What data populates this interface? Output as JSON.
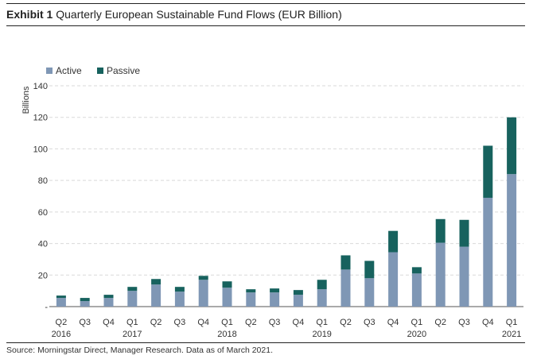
{
  "header": {
    "exhibit_label": "Exhibit 1",
    "title": "Quarterly European Sustainable Fund Flows (EUR Billion)"
  },
  "footer": {
    "source": "Source: Morningstar Direct, Manager Research. Data as of March 2021."
  },
  "colors": {
    "active": "#7f97b5",
    "passive": "#17625e",
    "grid": "#d9d9d9",
    "axis": "#555555"
  },
  "chart_data": {
    "type": "bar",
    "stacked": true,
    "title": "",
    "ylabel": "Billions",
    "xlabel": "",
    "ylim": [
      0,
      140
    ],
    "yticks": [
      0,
      20,
      40,
      60,
      80,
      100,
      120,
      140
    ],
    "y_tick_labels": [
      "-",
      "20",
      "40",
      "60",
      "80",
      "100",
      "120",
      "140"
    ],
    "grid": true,
    "legend_position": "top-left",
    "categories": [
      "Q2 2016",
      "Q3 2016",
      "Q4 2016",
      "Q1 2017",
      "Q2 2017",
      "Q3 2017",
      "Q4 2017",
      "Q1 2018",
      "Q2 2018",
      "Q3 2018",
      "Q4 2018",
      "Q1 2019",
      "Q2 2019",
      "Q3 2019",
      "Q4 2019",
      "Q1 2020",
      "Q2 2020",
      "Q3 2020",
      "Q4 2020",
      "Q1 2021"
    ],
    "tick_quarters": [
      "Q2",
      "Q3",
      "Q4",
      "Q1",
      "Q2",
      "Q3",
      "Q4",
      "Q1",
      "Q2",
      "Q3",
      "Q4",
      "Q1",
      "Q2",
      "Q3",
      "Q4",
      "Q1",
      "Q2",
      "Q3",
      "Q4",
      "Q1"
    ],
    "tick_years": [
      "2016",
      "",
      "",
      "2017",
      "",
      "",
      "",
      "2018",
      "",
      "",
      "",
      "2019",
      "",
      "",
      "",
      "2020",
      "",
      "",
      "",
      "2021"
    ],
    "series": [
      {
        "name": "Active",
        "values": [
          5.5,
          3.5,
          5.5,
          10,
          14,
          9.5,
          17,
          12,
          9,
          9,
          7.5,
          11,
          23.5,
          18,
          34.5,
          21,
          40.5,
          38,
          69,
          84
        ]
      },
      {
        "name": "Passive",
        "values": [
          1.5,
          2,
          2,
          2.5,
          3.5,
          3,
          2.5,
          4,
          2,
          2.5,
          3,
          6,
          9,
          11,
          13.5,
          4,
          15,
          17,
          33,
          36
        ]
      }
    ]
  }
}
